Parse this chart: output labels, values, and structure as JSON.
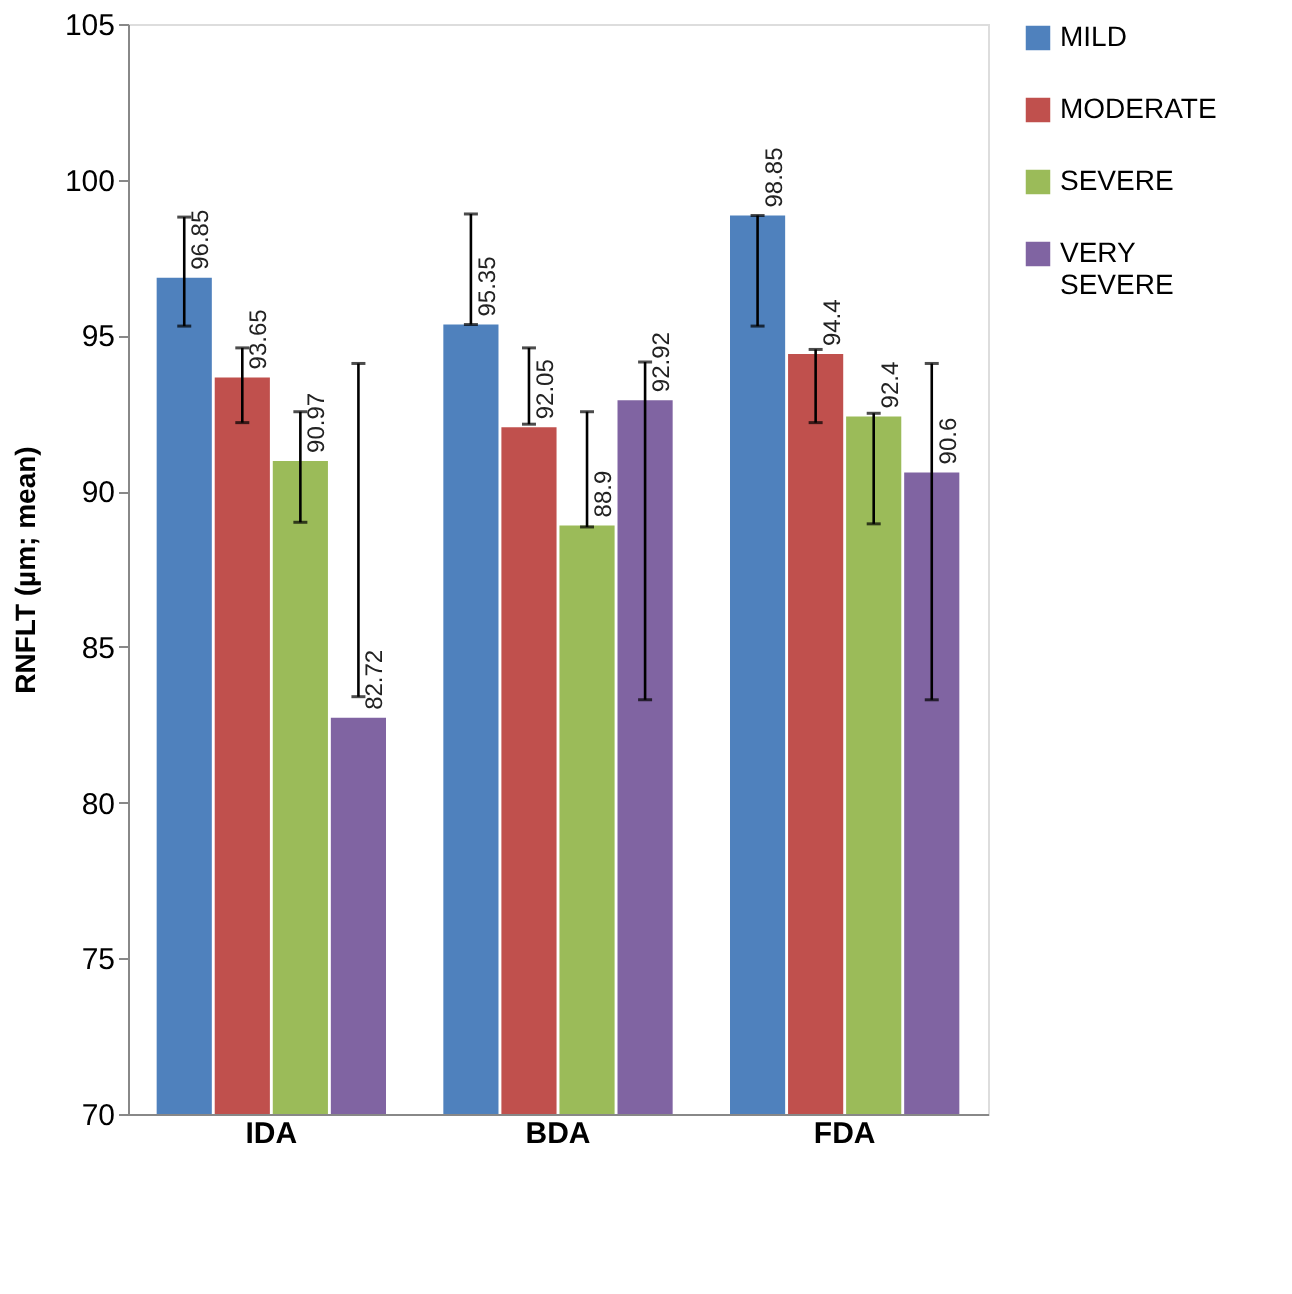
{
  "chart_data": {
    "type": "bar",
    "ylabel": "RNFLT (µm; mean)",
    "categories": [
      "IDA",
      "BDA",
      "FDA"
    ],
    "series": [
      {
        "name": "MILD",
        "color": "#4f81bd",
        "values": [
          96.85,
          95.35,
          98.85
        ],
        "errors": [
          [
            95.3,
            98.8
          ],
          [
            95.35,
            98.9
          ],
          [
            95.3,
            98.85
          ]
        ]
      },
      {
        "name": "MODERATE",
        "color": "#c0504d",
        "values": [
          93.65,
          92.05,
          94.4
        ],
        "errors": [
          [
            92.2,
            94.6
          ],
          [
            92.15,
            94.6
          ],
          [
            92.2,
            94.55
          ]
        ]
      },
      {
        "name": "SEVERE",
        "color": "#9bbb59",
        "values": [
          90.97,
          88.9,
          92.4
        ],
        "errors": [
          [
            89.0,
            92.55
          ],
          [
            88.85,
            92.55
          ],
          [
            88.95,
            92.5
          ]
        ]
      },
      {
        "name": "VERY SEVERE",
        "color": "#8064a2",
        "values": [
          82.72,
          92.92,
          90.6
        ],
        "errors": [
          [
            83.4,
            94.1
          ],
          [
            83.3,
            94.15
          ],
          [
            83.3,
            94.1
          ]
        ]
      }
    ],
    "ylim": [
      70,
      105
    ],
    "yticks": [
      70,
      75,
      80,
      85,
      90,
      95,
      100,
      105
    ],
    "grid": false,
    "legend": "right",
    "data_labels": true
  }
}
